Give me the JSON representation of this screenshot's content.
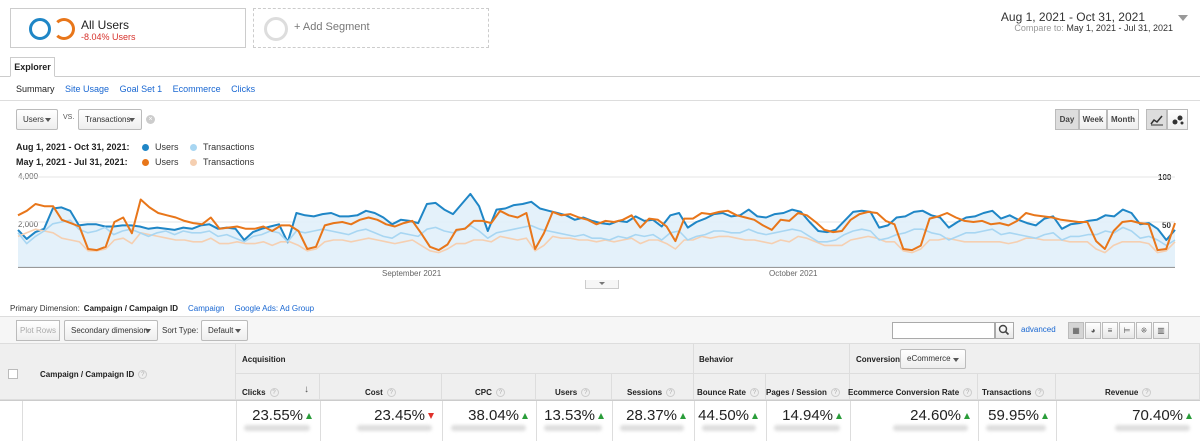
{
  "segments": {
    "primary": {
      "title": "All Users",
      "subtitle": "-8.04% Users"
    },
    "add_label": "+ Add Segment"
  },
  "date_range": {
    "main": "Aug 1, 2021 - Oct 31, 2021",
    "compare_label": "Compare to:",
    "compare_range": "May 1, 2021 - Jul 31, 2021"
  },
  "tabs": {
    "explorer": "Explorer"
  },
  "subtabs": [
    "Summary",
    "Site Usage",
    "Goal Set 1",
    "Ecommerce",
    "Clicks"
  ],
  "metric_pickers": {
    "primary": "Users",
    "vs_label": "VS.",
    "secondary": "Transactions"
  },
  "granularity": {
    "day": "Day",
    "week": "Week",
    "month": "Month"
  },
  "legend": {
    "current_label": "Aug 1, 2021 - Oct 31, 2021:",
    "previous_label": "May 1, 2021 - Jul 31, 2021:",
    "series": [
      "Users",
      "Transactions"
    ]
  },
  "colors": {
    "users_current": "#1f86c6",
    "transactions_current": "#a8d6f2",
    "users_previous": "#e8761a",
    "transactions_previous": "#f5cfb1",
    "positive": "#2a9d3a",
    "negative": "#e0312b",
    "link": "#1967d2"
  },
  "chart_data": {
    "type": "line",
    "y_left_ticks": [
      "4,000",
      "2,000"
    ],
    "y_right_ticks": [
      "100",
      "50"
    ],
    "y_left_range": [
      0,
      4000
    ],
    "y_right_range": [
      0,
      100
    ],
    "x_labels": [
      "September 2021",
      "October 2021"
    ],
    "series": [
      {
        "name": "Users",
        "period": "current",
        "axis": "left",
        "values": [
          1650,
          1250,
          1550,
          1700,
          2600,
          2650,
          2500,
          1850,
          1900,
          1900,
          1800,
          1800,
          1850,
          1850,
          1800,
          1700,
          1750,
          1700,
          1650,
          1750,
          1700,
          1850,
          1900,
          1700,
          1750,
          1700,
          1200,
          1550,
          1700,
          1800,
          1900,
          1100,
          2400,
          2300,
          2250,
          2350,
          2400,
          2250,
          2250,
          2300,
          2500,
          2400,
          2200,
          1900,
          2100,
          2050,
          1950,
          2800,
          2850,
          2550,
          2350,
          2800,
          3250,
          2700,
          1600,
          2550,
          2600,
          2750,
          2800,
          2900,
          2600,
          2500,
          2400,
          2300,
          2100,
          2200,
          2050,
          1950,
          1900,
          2050,
          2000,
          2250,
          2050,
          2100,
          1800,
          2300,
          2400,
          1750,
          2000,
          2150,
          2350,
          2400,
          2250,
          2300,
          2550,
          2250,
          2200,
          2350,
          2400,
          2550,
          2450,
          2000,
          1600,
          1550,
          1650,
          2050,
          2450,
          2500,
          2450,
          1750,
          1850,
          2200,
          2250,
          2450,
          2500,
          2300,
          2200,
          1750,
          2000,
          2200,
          2250,
          2400,
          2500,
          2150,
          2300,
          2100,
          1950,
          1850,
          2150,
          2250,
          1700,
          1900,
          1950,
          2050,
          2100,
          2300,
          2250,
          2550,
          2400,
          1900,
          1950,
          1700,
          1200,
          1650
        ]
      },
      {
        "name": "Transactions",
        "period": "current",
        "axis": "right",
        "values": [
          38,
          26,
          34,
          40,
          48,
          50,
          52,
          42,
          38,
          40,
          44,
          36,
          40,
          42,
          38,
          34,
          38,
          40,
          36,
          40,
          38,
          38,
          40,
          34,
          36,
          32,
          28,
          34,
          36,
          40,
          38,
          28,
          40,
          38,
          40,
          42,
          40,
          38,
          36,
          40,
          42,
          38,
          34,
          32,
          38,
          36,
          34,
          42,
          44,
          40,
          38,
          42,
          46,
          40,
          32,
          38,
          40,
          42,
          44,
          46,
          42,
          40,
          38,
          36,
          34,
          36,
          32,
          32,
          30,
          34,
          32,
          36,
          34,
          36,
          30,
          38,
          40,
          30,
          34,
          36,
          40,
          40,
          38,
          38,
          42,
          38,
          36,
          38,
          40,
          42,
          40,
          34,
          28,
          28,
          30,
          36,
          40,
          42,
          40,
          30,
          32,
          36,
          38,
          42,
          42,
          38,
          36,
          30,
          34,
          38,
          38,
          40,
          42,
          36,
          38,
          36,
          34,
          32,
          36,
          38,
          30,
          34,
          34,
          36,
          36,
          40,
          38,
          44,
          40,
          32,
          34,
          30,
          24,
          30
        ]
      },
      {
        "name": "Users",
        "period": "previous",
        "axis": "left",
        "values": [
          2300,
          2500,
          2800,
          2700,
          2700,
          2100,
          1950,
          1800,
          800,
          750,
          900,
          2000,
          2200,
          1500,
          3000,
          2650,
          2400,
          2300,
          2200,
          2050,
          1950,
          1900,
          2200,
          1700,
          1750,
          1800,
          1700,
          1700,
          1800,
          1600,
          1850,
          1850,
          1600,
          800,
          900,
          1850,
          1950,
          2000,
          1900,
          2100,
          2200,
          2100,
          1900,
          1800,
          1950,
          2050,
          1500,
          900,
          750,
          1000,
          1650,
          1700,
          2050,
          2050,
          1950,
          2500,
          2300,
          2200,
          2400,
          800,
          1500,
          2450,
          2300,
          2350,
          2200,
          2100,
          1900,
          2050,
          2000,
          2100,
          2300,
          1750,
          2150,
          2100,
          1800,
          1150,
          2150,
          2150,
          2400,
          2350,
          2450,
          2500,
          2300,
          2200,
          2100,
          1850,
          1650,
          2100,
          2050,
          2400,
          2300,
          2000,
          1650,
          1550,
          1600,
          2100,
          2350,
          2450,
          2400,
          2050,
          1900,
          800,
          750,
          950,
          2150,
          2250,
          2400,
          2200,
          2050,
          2000,
          2050,
          1900,
          1950,
          1850,
          2050,
          2400,
          2300,
          2250,
          2200,
          2100,
          2050,
          2000,
          2000,
          1150,
          800,
          1600,
          2000,
          2050,
          1950,
          1900,
          750,
          800,
          1950
        ]
      },
      {
        "name": "Transactions",
        "period": "previous",
        "axis": "right",
        "values": [
          34,
          38,
          42,
          40,
          38,
          32,
          30,
          28,
          18,
          18,
          20,
          30,
          32,
          26,
          38,
          36,
          34,
          32,
          30,
          30,
          28,
          28,
          32,
          26,
          26,
          28,
          26,
          26,
          28,
          24,
          28,
          28,
          24,
          18,
          20,
          28,
          30,
          30,
          28,
          30,
          32,
          30,
          28,
          26,
          28,
          30,
          24,
          18,
          16,
          20,
          26,
          26,
          30,
          30,
          28,
          34,
          32,
          30,
          32,
          18,
          24,
          34,
          32,
          32,
          30,
          30,
          28,
          30,
          28,
          30,
          32,
          26,
          30,
          30,
          26,
          20,
          30,
          30,
          34,
          32,
          34,
          34,
          32,
          30,
          30,
          28,
          26,
          30,
          28,
          34,
          32,
          28,
          24,
          24,
          24,
          30,
          32,
          34,
          32,
          28,
          28,
          18,
          16,
          20,
          30,
          30,
          32,
          30,
          28,
          28,
          28,
          28,
          28,
          26,
          28,
          32,
          32,
          30,
          30,
          30,
          28,
          28,
          28,
          20,
          16,
          24,
          28,
          28,
          28,
          26,
          16,
          18,
          28
        ]
      }
    ]
  },
  "primary_dimension": {
    "label": "Primary Dimension:",
    "selected": "Campaign / Campaign ID",
    "options": [
      "Campaign",
      "Google Ads: Ad Group"
    ]
  },
  "toolbar": {
    "plot_rows": "Plot Rows",
    "secondary_dimension": "Secondary dimension",
    "sort_type_label": "Sort Type:",
    "sort_type_value": "Default",
    "advanced": "advanced"
  },
  "table": {
    "dimension_header": "Campaign / Campaign ID",
    "groups": {
      "acquisition": "Acquisition",
      "behavior": "Behavior",
      "conversions": "Conversions",
      "conversions_select": "eCommerce"
    },
    "columns": [
      {
        "name": "Clicks",
        "value": "23.55%",
        "dir": "up"
      },
      {
        "name": "Cost",
        "value": "23.45%",
        "dir": "down"
      },
      {
        "name": "CPC",
        "value": "38.04%",
        "dir": "up"
      },
      {
        "name": "Users",
        "value": "13.53%",
        "dir": "up"
      },
      {
        "name": "Sessions",
        "value": "28.37%",
        "dir": "up"
      },
      {
        "name": "Bounce Rate",
        "value": "44.50%",
        "dir": "up"
      },
      {
        "name": "Pages / Session",
        "value": "14.94%",
        "dir": "up"
      },
      {
        "name": "Ecommerce Conversion Rate",
        "value": "24.60%",
        "dir": "up"
      },
      {
        "name": "Transactions",
        "value": "59.95%",
        "dir": "up"
      },
      {
        "name": "Revenue",
        "value": "70.40%",
        "dir": "up"
      }
    ]
  }
}
